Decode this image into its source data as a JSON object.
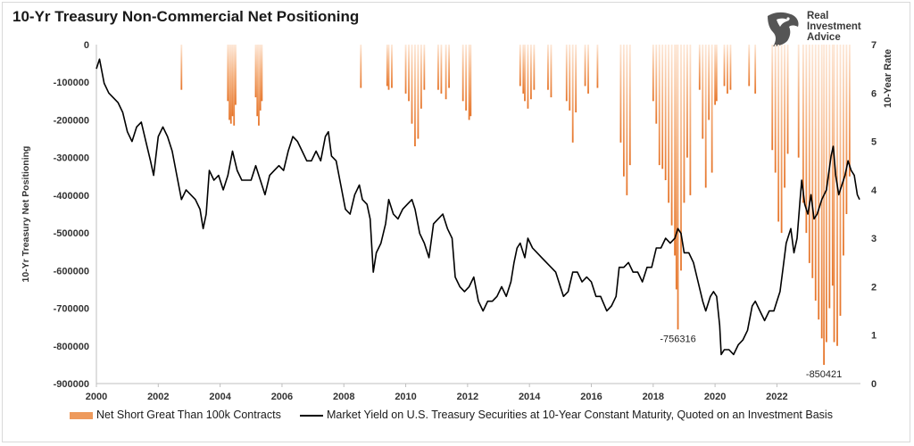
{
  "chart_data": {
    "type": "area+line",
    "title": "10-Yr Treasury Non-Commercial Net Positioning",
    "ylabel": "10-Yr Treasury Net Positioning",
    "y2label": "10-Year Rate",
    "xlim": [
      2000,
      2024.7
    ],
    "ylim": [
      -900000,
      0
    ],
    "y2lim": [
      0,
      7
    ],
    "x_ticks": [
      "2000",
      "2002",
      "2004",
      "2006",
      "2008",
      "2010",
      "2012",
      "2014",
      "2016",
      "2018",
      "2020",
      "2022"
    ],
    "y_ticks": [
      "0",
      "-100000",
      "-200000",
      "-300000",
      "-400000",
      "-500000",
      "-600000",
      "-700000",
      "-800000",
      "-900000"
    ],
    "y2_ticks": [
      "0",
      "1",
      "2",
      "3",
      "4",
      "5",
      "6",
      "7"
    ],
    "series": [
      {
        "name": "Net Short Great Than 100k Contracts",
        "kind": "bars",
        "color": "#ee8a45",
        "points": [
          [
            2002.75,
            -120000
          ],
          [
            2004.25,
            -150000
          ],
          [
            2004.3,
            -200000
          ],
          [
            2004.35,
            -210000
          ],
          [
            2004.4,
            -190000
          ],
          [
            2004.45,
            -215000
          ],
          [
            2004.5,
            -160000
          ],
          [
            2005.15,
            -140000
          ],
          [
            2005.2,
            -190000
          ],
          [
            2005.25,
            -215000
          ],
          [
            2005.3,
            -175000
          ],
          [
            2005.35,
            -150000
          ],
          [
            2008.55,
            -115000
          ],
          [
            2009.4,
            -110000
          ],
          [
            2009.45,
            -120000
          ],
          [
            2009.55,
            -115000
          ],
          [
            2010.0,
            -130000
          ],
          [
            2010.1,
            -150000
          ],
          [
            2010.2,
            -210000
          ],
          [
            2010.3,
            -270000
          ],
          [
            2010.4,
            -250000
          ],
          [
            2010.5,
            -170000
          ],
          [
            2010.6,
            -120000
          ],
          [
            2011.05,
            -120000
          ],
          [
            2011.15,
            -130000
          ],
          [
            2011.3,
            -145000
          ],
          [
            2011.4,
            -115000
          ],
          [
            2011.85,
            -150000
          ],
          [
            2011.95,
            -175000
          ],
          [
            2012.05,
            -200000
          ],
          [
            2012.1,
            -190000
          ],
          [
            2013.7,
            -110000
          ],
          [
            2013.8,
            -130000
          ],
          [
            2013.85,
            -150000
          ],
          [
            2013.95,
            -170000
          ],
          [
            2014.05,
            -145000
          ],
          [
            2014.15,
            -120000
          ],
          [
            2014.6,
            -120000
          ],
          [
            2014.7,
            -140000
          ],
          [
            2015.2,
            -150000
          ],
          [
            2015.3,
            -175000
          ],
          [
            2015.4,
            -260000
          ],
          [
            2015.5,
            -180000
          ],
          [
            2015.8,
            -110000
          ],
          [
            2015.9,
            -130000
          ],
          [
            2016.2,
            -115000
          ],
          [
            2016.95,
            -260000
          ],
          [
            2017.05,
            -350000
          ],
          [
            2017.15,
            -400000
          ],
          [
            2017.25,
            -320000
          ],
          [
            2018.0,
            -150000
          ],
          [
            2018.1,
            -210000
          ],
          [
            2018.2,
            -320000
          ],
          [
            2018.3,
            -330000
          ],
          [
            2018.4,
            -360000
          ],
          [
            2018.5,
            -420000
          ],
          [
            2018.6,
            -480000
          ],
          [
            2018.7,
            -560000
          ],
          [
            2018.75,
            -650000
          ],
          [
            2018.8,
            -756316
          ],
          [
            2018.9,
            -600000
          ],
          [
            2019.0,
            -420000
          ],
          [
            2019.1,
            -300000
          ],
          [
            2019.2,
            -400000
          ],
          [
            2019.5,
            -120000
          ],
          [
            2019.6,
            -250000
          ],
          [
            2019.7,
            -380000
          ],
          [
            2019.8,
            -200000
          ],
          [
            2019.9,
            -340000
          ],
          [
            2020.0,
            -160000
          ],
          [
            2020.05,
            -150000
          ],
          [
            2020.3,
            -110000
          ],
          [
            2020.4,
            -130000
          ],
          [
            2020.5,
            -120000
          ],
          [
            2021.1,
            -110000
          ],
          [
            2021.3,
            -130000
          ],
          [
            2021.85,
            -280000
          ],
          [
            2021.95,
            -340000
          ],
          [
            2022.05,
            -470000
          ],
          [
            2022.15,
            -500000
          ],
          [
            2022.25,
            -380000
          ],
          [
            2022.35,
            -290000
          ],
          [
            2022.7,
            -300000
          ],
          [
            2022.85,
            -420000
          ],
          [
            2022.95,
            -500000
          ],
          [
            2023.05,
            -580000
          ],
          [
            2023.15,
            -620000
          ],
          [
            2023.25,
            -680000
          ],
          [
            2023.35,
            -730000
          ],
          [
            2023.45,
            -780000
          ],
          [
            2023.52,
            -850421
          ],
          [
            2023.6,
            -790000
          ],
          [
            2023.7,
            -700000
          ],
          [
            2023.8,
            -640000
          ],
          [
            2023.85,
            -790000
          ],
          [
            2023.95,
            -800000
          ],
          [
            2024.05,
            -720000
          ],
          [
            2024.15,
            -560000
          ],
          [
            2024.25,
            -450000
          ],
          [
            2024.35,
            -350000
          ]
        ]
      },
      {
        "name": "Market Yield on U.S. Treasury Securities at 10-Year Constant Maturity, Quoted on an Investment Basis",
        "kind": "line",
        "axis": "y2",
        "color": "#000000",
        "points": [
          [
            2000.0,
            6.5
          ],
          [
            2000.1,
            6.7
          ],
          [
            2000.25,
            6.2
          ],
          [
            2000.4,
            6.0
          ],
          [
            2000.55,
            5.9
          ],
          [
            2000.7,
            5.8
          ],
          [
            2000.85,
            5.6
          ],
          [
            2001.0,
            5.2
          ],
          [
            2001.15,
            5.0
          ],
          [
            2001.3,
            5.3
          ],
          [
            2001.45,
            5.4
          ],
          [
            2001.6,
            5.0
          ],
          [
            2001.75,
            4.6
          ],
          [
            2001.85,
            4.3
          ],
          [
            2002.0,
            5.1
          ],
          [
            2002.15,
            5.3
          ],
          [
            2002.3,
            5.1
          ],
          [
            2002.45,
            4.8
          ],
          [
            2002.6,
            4.3
          ],
          [
            2002.75,
            3.8
          ],
          [
            2002.9,
            4.0
          ],
          [
            2003.05,
            3.9
          ],
          [
            2003.2,
            3.8
          ],
          [
            2003.35,
            3.6
          ],
          [
            2003.45,
            3.2
          ],
          [
            2003.55,
            3.5
          ],
          [
            2003.65,
            4.4
          ],
          [
            2003.8,
            4.2
          ],
          [
            2003.95,
            4.3
          ],
          [
            2004.1,
            4.0
          ],
          [
            2004.25,
            4.3
          ],
          [
            2004.4,
            4.8
          ],
          [
            2004.55,
            4.4
          ],
          [
            2004.7,
            4.2
          ],
          [
            2004.85,
            4.2
          ],
          [
            2005.0,
            4.2
          ],
          [
            2005.15,
            4.5
          ],
          [
            2005.3,
            4.2
          ],
          [
            2005.45,
            3.9
          ],
          [
            2005.6,
            4.3
          ],
          [
            2005.75,
            4.4
          ],
          [
            2005.9,
            4.5
          ],
          [
            2006.05,
            4.4
          ],
          [
            2006.2,
            4.8
          ],
          [
            2006.35,
            5.1
          ],
          [
            2006.5,
            5.0
          ],
          [
            2006.65,
            4.8
          ],
          [
            2006.8,
            4.6
          ],
          [
            2006.95,
            4.6
          ],
          [
            2007.1,
            4.8
          ],
          [
            2007.25,
            4.6
          ],
          [
            2007.4,
            5.1
          ],
          [
            2007.5,
            5.2
          ],
          [
            2007.6,
            4.7
          ],
          [
            2007.75,
            4.6
          ],
          [
            2007.9,
            4.1
          ],
          [
            2008.05,
            3.6
          ],
          [
            2008.2,
            3.5
          ],
          [
            2008.35,
            3.9
          ],
          [
            2008.5,
            4.1
          ],
          [
            2008.6,
            3.8
          ],
          [
            2008.75,
            3.7
          ],
          [
            2008.85,
            3.4
          ],
          [
            2008.95,
            2.3
          ],
          [
            2009.05,
            2.7
          ],
          [
            2009.2,
            2.9
          ],
          [
            2009.35,
            3.3
          ],
          [
            2009.45,
            3.8
          ],
          [
            2009.6,
            3.5
          ],
          [
            2009.75,
            3.4
          ],
          [
            2009.9,
            3.6
          ],
          [
            2010.05,
            3.7
          ],
          [
            2010.2,
            3.8
          ],
          [
            2010.3,
            3.6
          ],
          [
            2010.45,
            3.1
          ],
          [
            2010.6,
            2.9
          ],
          [
            2010.75,
            2.6
          ],
          [
            2010.9,
            3.3
          ],
          [
            2011.05,
            3.4
          ],
          [
            2011.2,
            3.5
          ],
          [
            2011.35,
            3.2
          ],
          [
            2011.5,
            3.0
          ],
          [
            2011.6,
            2.2
          ],
          [
            2011.75,
            2.0
          ],
          [
            2011.9,
            1.9
          ],
          [
            2012.05,
            2.0
          ],
          [
            2012.2,
            2.2
          ],
          [
            2012.35,
            1.7
          ],
          [
            2012.5,
            1.5
          ],
          [
            2012.65,
            1.7
          ],
          [
            2012.8,
            1.7
          ],
          [
            2012.95,
            1.8
          ],
          [
            2013.1,
            2.0
          ],
          [
            2013.25,
            1.8
          ],
          [
            2013.4,
            2.1
          ],
          [
            2013.5,
            2.5
          ],
          [
            2013.6,
            2.8
          ],
          [
            2013.7,
            2.9
          ],
          [
            2013.85,
            2.6
          ],
          [
            2013.95,
            3.0
          ],
          [
            2014.1,
            2.8
          ],
          [
            2014.25,
            2.7
          ],
          [
            2014.4,
            2.6
          ],
          [
            2014.55,
            2.5
          ],
          [
            2014.7,
            2.4
          ],
          [
            2014.85,
            2.3
          ],
          [
            2015.0,
            2.0
          ],
          [
            2015.1,
            1.8
          ],
          [
            2015.25,
            1.9
          ],
          [
            2015.4,
            2.3
          ],
          [
            2015.55,
            2.3
          ],
          [
            2015.7,
            2.1
          ],
          [
            2015.85,
            2.2
          ],
          [
            2016.0,
            2.1
          ],
          [
            2016.15,
            1.8
          ],
          [
            2016.3,
            1.8
          ],
          [
            2016.5,
            1.5
          ],
          [
            2016.65,
            1.6
          ],
          [
            2016.8,
            1.8
          ],
          [
            2016.9,
            2.4
          ],
          [
            2017.05,
            2.4
          ],
          [
            2017.2,
            2.5
          ],
          [
            2017.35,
            2.3
          ],
          [
            2017.5,
            2.3
          ],
          [
            2017.65,
            2.1
          ],
          [
            2017.8,
            2.4
          ],
          [
            2017.95,
            2.4
          ],
          [
            2018.1,
            2.8
          ],
          [
            2018.25,
            2.8
          ],
          [
            2018.4,
            3.0
          ],
          [
            2018.55,
            2.9
          ],
          [
            2018.7,
            3.0
          ],
          [
            2018.8,
            3.2
          ],
          [
            2018.9,
            3.1
          ],
          [
            2019.0,
            2.7
          ],
          [
            2019.15,
            2.7
          ],
          [
            2019.3,
            2.5
          ],
          [
            2019.45,
            2.1
          ],
          [
            2019.6,
            1.7
          ],
          [
            2019.7,
            1.5
          ],
          [
            2019.85,
            1.8
          ],
          [
            2019.95,
            1.9
          ],
          [
            2020.05,
            1.8
          ],
          [
            2020.15,
            1.2
          ],
          [
            2020.2,
            0.6
          ],
          [
            2020.3,
            0.7
          ],
          [
            2020.45,
            0.7
          ],
          [
            2020.6,
            0.6
          ],
          [
            2020.75,
            0.8
          ],
          [
            2020.9,
            0.9
          ],
          [
            2021.05,
            1.1
          ],
          [
            2021.2,
            1.6
          ],
          [
            2021.3,
            1.7
          ],
          [
            2021.45,
            1.5
          ],
          [
            2021.6,
            1.3
          ],
          [
            2021.75,
            1.5
          ],
          [
            2021.9,
            1.5
          ],
          [
            2022.0,
            1.7
          ],
          [
            2022.1,
            1.9
          ],
          [
            2022.2,
            2.4
          ],
          [
            2022.3,
            2.9
          ],
          [
            2022.45,
            3.2
          ],
          [
            2022.55,
            2.7
          ],
          [
            2022.65,
            3.0
          ],
          [
            2022.75,
            3.8
          ],
          [
            2022.8,
            4.2
          ],
          [
            2022.9,
            3.7
          ],
          [
            2023.0,
            3.5
          ],
          [
            2023.1,
            3.9
          ],
          [
            2023.2,
            3.4
          ],
          [
            2023.3,
            3.5
          ],
          [
            2023.45,
            3.8
          ],
          [
            2023.6,
            4.0
          ],
          [
            2023.75,
            4.7
          ],
          [
            2023.82,
            4.9
          ],
          [
            2023.9,
            4.3
          ],
          [
            2024.0,
            3.9
          ],
          [
            2024.1,
            4.1
          ],
          [
            2024.2,
            4.3
          ],
          [
            2024.3,
            4.6
          ],
          [
            2024.4,
            4.4
          ],
          [
            2024.5,
            4.3
          ],
          [
            2024.6,
            3.9
          ],
          [
            2024.67,
            3.8
          ]
        ]
      }
    ],
    "annotations": [
      {
        "text": "-756316",
        "x": 2018.8,
        "y": -756316
      },
      {
        "text": "-850421",
        "x": 2023.52,
        "y": -850421
      }
    ],
    "legend": "bottom"
  },
  "logo": {
    "line1": "Real",
    "line2": "Investment",
    "line3": "Advice"
  }
}
